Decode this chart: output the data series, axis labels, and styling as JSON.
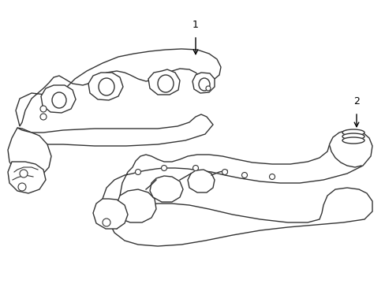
{
  "background_color": "#ffffff",
  "line_color": "#333333",
  "line_width": 1.0,
  "label1": "1",
  "label2": "2"
}
